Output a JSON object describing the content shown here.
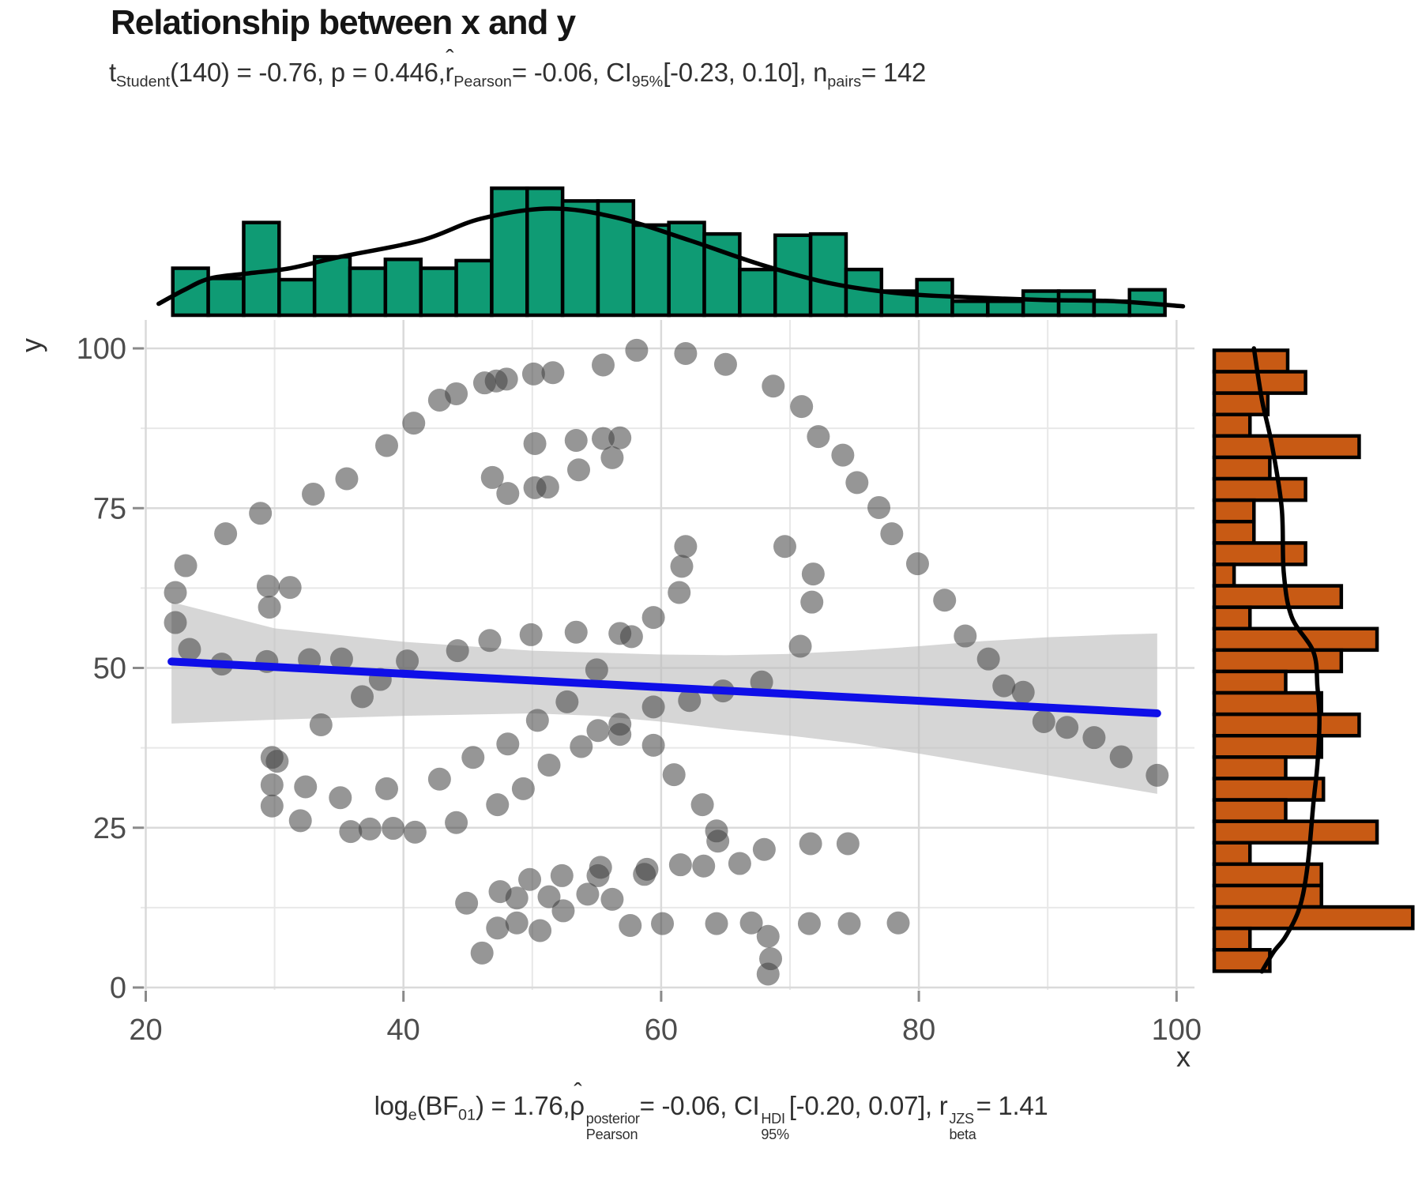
{
  "figure": {
    "title": "Relationship between x and y"
  },
  "subtitle_segments": [
    {
      "t": "t",
      "sub": "Student"
    },
    {
      "t": "(140) = -0.76, p = 0.446, "
    },
    {
      "t": "r",
      "hat": true,
      "sub": "Pearson"
    },
    {
      "t": " = -0.06, CI",
      "sub": "95%"
    },
    {
      "t": " [-0.23, 0.10], n",
      "sub": "pairs"
    },
    {
      "t": " = 142"
    }
  ],
  "caption_segments": [
    {
      "t": "log",
      "sub": "e"
    },
    {
      "t": "(BF",
      "sub": "01"
    },
    {
      "t": ") = 1.76, "
    },
    {
      "t": "ρ",
      "hat": true,
      "sup": "posterior",
      "sub": "Pearson"
    },
    {
      "t": " = -0.06, CI",
      "sup": "HDI",
      "sub": "95%"
    },
    {
      "t": " [-0.20, 0.07], r",
      "sup": "JZS",
      "sub": "beta"
    },
    {
      "t": " = 1.41"
    }
  ],
  "chart_data": {
    "type": "scatter",
    "title": "Relationship between x and y",
    "xlabel": "x",
    "ylabel": "y",
    "xlim": [
      19.6,
      101.2
    ],
    "ylim": [
      0,
      104
    ],
    "x_ticks": [
      20,
      40,
      60,
      80,
      100
    ],
    "y_ticks": [
      0,
      25,
      50,
      75,
      100
    ],
    "x_minor": [
      30,
      50,
      70,
      90
    ],
    "y_minor": [
      12.5,
      37.5,
      62.5,
      87.5
    ],
    "n_pairs": 142,
    "points": [
      [
        23.1,
        66
      ],
      [
        26.2,
        71
      ],
      [
        28.9,
        74.2
      ],
      [
        33,
        77.2
      ],
      [
        35.6,
        79.6
      ],
      [
        38.7,
        84.8
      ],
      [
        40.8,
        88.3
      ],
      [
        42.8,
        91.9
      ],
      [
        44.1,
        92.9
      ],
      [
        46.3,
        94.6
      ],
      [
        47.2,
        94.9
      ],
      [
        48,
        95.2
      ],
      [
        50.1,
        96
      ],
      [
        51.6,
        96.2
      ],
      [
        46.9,
        79.8
      ],
      [
        48.1,
        77.3
      ],
      [
        50.2,
        78.2
      ],
      [
        51.2,
        78.3
      ],
      [
        50.2,
        85.1
      ],
      [
        53.4,
        85.6
      ],
      [
        53.6,
        81
      ],
      [
        58.1,
        99.7
      ],
      [
        55.5,
        97.4
      ],
      [
        61.9,
        99.2
      ],
      [
        65,
        97.5
      ],
      [
        68.7,
        94.1
      ],
      [
        70.9,
        90.9
      ],
      [
        72.2,
        86.2
      ],
      [
        74.1,
        83.3
      ],
      [
        75.2,
        79
      ],
      [
        76.9,
        75.1
      ],
      [
        77.9,
        71
      ],
      [
        79.9,
        66.3
      ],
      [
        55.5,
        85.9
      ],
      [
        56.8,
        86
      ],
      [
        56.2,
        82.9
      ],
      [
        61.9,
        69
      ],
      [
        61.6,
        65.9
      ],
      [
        69.6,
        69
      ],
      [
        71.8,
        64.7
      ],
      [
        22.3,
        61.8
      ],
      [
        22.3,
        57.1
      ],
      [
        23.4,
        52.9
      ],
      [
        25.9,
        50.6
      ],
      [
        29.5,
        62.8
      ],
      [
        29.6,
        59.5
      ],
      [
        31.2,
        62.6
      ],
      [
        29.4,
        51
      ],
      [
        32.7,
        51.3
      ],
      [
        35.2,
        51.4
      ],
      [
        38.2,
        48.2
      ],
      [
        36.8,
        45.5
      ],
      [
        40.3,
        51.1
      ],
      [
        44.2,
        52.7
      ],
      [
        46.7,
        54.3
      ],
      [
        49.9,
        55.2
      ],
      [
        53.4,
        55.6
      ],
      [
        33.6,
        41.1
      ],
      [
        29.8,
        36
      ],
      [
        30.2,
        35.4
      ],
      [
        29.8,
        31.7
      ],
      [
        32.4,
        31.4
      ],
      [
        29.8,
        28.4
      ],
      [
        32,
        26.1
      ],
      [
        35.1,
        29.7
      ],
      [
        35.9,
        24.4
      ],
      [
        37.4,
        24.8
      ],
      [
        39.2,
        24.9
      ],
      [
        40.9,
        24.3
      ],
      [
        38.7,
        31.1
      ],
      [
        42.8,
        32.6
      ],
      [
        44.1,
        25.8
      ],
      [
        45.4,
        36
      ],
      [
        48.1,
        38.1
      ],
      [
        47.3,
        28.6
      ],
      [
        49.3,
        31.1
      ],
      [
        51.3,
        34.8
      ],
      [
        52.7,
        44.7
      ],
      [
        50.4,
        41.8
      ],
      [
        61.4,
        61.8
      ],
      [
        59.4,
        57.9
      ],
      [
        56.8,
        55.4
      ],
      [
        57.7,
        54.9
      ],
      [
        71.7,
        60.3
      ],
      [
        70.8,
        53.4
      ],
      [
        55,
        49.7
      ],
      [
        67.8,
        47.8
      ],
      [
        64.8,
        46.4
      ],
      [
        62.2,
        44.9
      ],
      [
        59.4,
        43.9
      ],
      [
        56.8,
        41.2
      ],
      [
        55.1,
        40.2
      ],
      [
        56.8,
        39.6
      ],
      [
        59.4,
        37.9
      ],
      [
        53.8,
        37.7
      ],
      [
        61,
        33.3
      ],
      [
        63.2,
        28.6
      ],
      [
        64.3,
        24.5
      ],
      [
        64.4,
        22.9
      ],
      [
        66.1,
        19.4
      ],
      [
        68,
        21.6
      ],
      [
        71.6,
        22.5
      ],
      [
        74.5,
        22.5
      ],
      [
        55.3,
        18.8
      ],
      [
        58.9,
        18.5
      ],
      [
        61.5,
        19.2
      ],
      [
        63.3,
        19
      ],
      [
        82,
        60.6
      ],
      [
        83.6,
        55
      ],
      [
        85.4,
        51.4
      ],
      [
        86.6,
        47.2
      ],
      [
        88.1,
        46.2
      ],
      [
        44.9,
        13.2
      ],
      [
        47.5,
        15
      ],
      [
        48.8,
        14
      ],
      [
        49.8,
        16.9
      ],
      [
        51.3,
        14.2
      ],
      [
        52.3,
        17.5
      ],
      [
        52.4,
        12
      ],
      [
        55.1,
        17.5
      ],
      [
        54.3,
        14.6
      ],
      [
        56.2,
        13.8
      ],
      [
        58.7,
        17.7
      ],
      [
        57.6,
        9.7
      ],
      [
        47.3,
        9.3
      ],
      [
        48.8,
        10.1
      ],
      [
        50.6,
        8.9
      ],
      [
        46.1,
        5.4
      ],
      [
        60.1,
        10
      ],
      [
        64.3,
        10
      ],
      [
        67,
        10.1
      ],
      [
        68.3,
        8
      ],
      [
        68.5,
        4.5
      ],
      [
        68.3,
        2.1
      ],
      [
        71.5,
        10
      ],
      [
        74.6,
        10
      ],
      [
        78.4,
        10.1
      ],
      [
        89.7,
        41.6
      ],
      [
        91.5,
        40.7
      ],
      [
        93.6,
        39.1
      ],
      [
        95.7,
        36.1
      ],
      [
        98.5,
        33.2
      ]
    ],
    "regression": {
      "x1": 22,
      "y1": 51.0,
      "x2": 98.5,
      "y2": 42.9
    },
    "ci_band": {
      "x": [
        22,
        30,
        40,
        50,
        55,
        60,
        65,
        70,
        75,
        80,
        85,
        90,
        95,
        98.5
      ],
      "top": [
        60.3,
        56.2,
        54.1,
        52.7,
        52.4,
        52.1,
        52.0,
        52.2,
        52.7,
        53.4,
        54.2,
        54.8,
        55.2,
        55.4
      ],
      "bottom": [
        41.3,
        41.9,
        42.5,
        42.9,
        42.5,
        41.6,
        40.4,
        39.4,
        38.2,
        36.6,
        34.9,
        33.2,
        31.5,
        30.3
      ]
    },
    "top_histogram": {
      "bin_start": 22.1,
      "bin_width": 2.75,
      "heights_rel": [
        0.37,
        0.29,
        0.73,
        0.28,
        0.46,
        0.37,
        0.44,
        0.37,
        0.43,
        1,
        1,
        0.9,
        0.9,
        0.71,
        0.73,
        0.64,
        0.36,
        0.63,
        0.64,
        0.36,
        0.19,
        0.28,
        0.11,
        0.11,
        0.19,
        0.19,
        0.11,
        0.2
      ]
    },
    "top_density": {
      "x": [
        21,
        23,
        25,
        28,
        31.2,
        35.1,
        41.4,
        46,
        51.4,
        56.5,
        62.2,
        67.7,
        73.2,
        78.7,
        84.2,
        89.7,
        95.3,
        100.5
      ],
      "h": [
        0.09,
        0.2,
        0.29,
        0.33,
        0.37,
        0.46,
        0.59,
        0.76,
        0.84,
        0.77,
        0.59,
        0.4,
        0.25,
        0.17,
        0.14,
        0.12,
        0.11,
        0.07
      ]
    },
    "right_histogram": {
      "bin_start": 99.7,
      "bin_height": 3.35,
      "lengths_rel": [
        0.37,
        0.46,
        0.27,
        0.18,
        0.73,
        0.28,
        0.46,
        0.2,
        0.2,
        0.46,
        0.1,
        0.64,
        0.18,
        0.82,
        0.64,
        0.36,
        0.54,
        0.73,
        0.54,
        0.36,
        0.55,
        0.36,
        0.82,
        0.18,
        0.54,
        0.54,
        1,
        0.18,
        0.28
      ]
    },
    "right_density": {
      "y": [
        100,
        92,
        85,
        75,
        65,
        58,
        52.5,
        47,
        42,
        35,
        29,
        19,
        12.5,
        8,
        5.6,
        2.5
      ],
      "h": [
        0.2,
        0.24,
        0.29,
        0.34,
        0.35,
        0.39,
        0.5,
        0.52,
        0.53,
        0.52,
        0.5,
        0.47,
        0.43,
        0.36,
        0.3,
        0.24
      ]
    },
    "colors": {
      "top_hist_fill": "#0F9B74",
      "right_hist_fill": "#C85A14",
      "hist_stroke": "#000000",
      "density_line": "#000000",
      "regression_line": "#0F0FE8",
      "ci_band_fill": "#BDBDBD",
      "point_fill": "#3F3F3F",
      "grid_major": "#DADADA",
      "grid_minor": "#E8E8E8",
      "tick_text": "#4D4D4D",
      "axis_title_text": "#333333",
      "tick_mark": "#8A8A8A"
    }
  }
}
